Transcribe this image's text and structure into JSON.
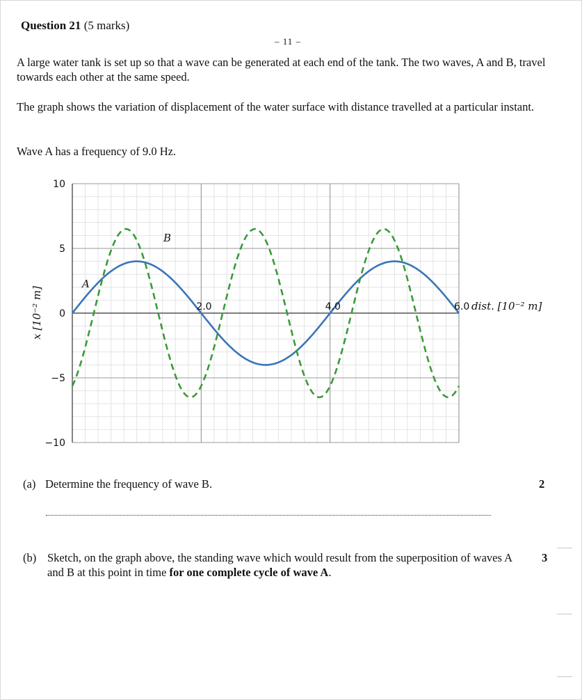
{
  "question": {
    "title": "Question 21",
    "marks": "(5 marks)"
  },
  "page_number": "– 11 –",
  "paragraphs": [
    "A large water tank is set up so that a wave can be generated at each end of the tank. The two waves, A and B, travel towards each other at the same speed.",
    "The graph shows the variation of displacement of the water surface with distance travelled at a particular instant.",
    "Wave A has a frequency of 9.0 Hz."
  ],
  "chart_data": {
    "type": "line",
    "xlabel": "dist. [10⁻² m]",
    "ylabel": "x [10⁻² m]",
    "xlim": [
      0,
      6.0
    ],
    "ylim": [
      -10,
      10
    ],
    "x_ticks": [
      "2.0",
      "4.0",
      "6.0"
    ],
    "y_ticks": [
      "10",
      "5",
      "0",
      "−5",
      "−10"
    ],
    "grid": true,
    "series": [
      {
        "name": "A",
        "style": "solid",
        "color": "#3a75b8",
        "amplitude": 4,
        "wavelength": 4.0,
        "phase_deg": 0
      },
      {
        "name": "B",
        "style": "dashed",
        "color": "#3a9a3a",
        "amplitude": 6.5,
        "wavelength": 2.0,
        "phase_deg": -60
      }
    ]
  },
  "part_a": {
    "label": "(a)",
    "text": "Determine the frequency of wave B.",
    "marks": "2"
  },
  "part_b": {
    "label": "(b)",
    "text_start": "Sketch, on the graph above, the standing wave which would result from the superposition of waves A and B at this point in time ",
    "text_bold": "for one complete cycle of wave A",
    "text_end": ".",
    "marks": "3"
  }
}
